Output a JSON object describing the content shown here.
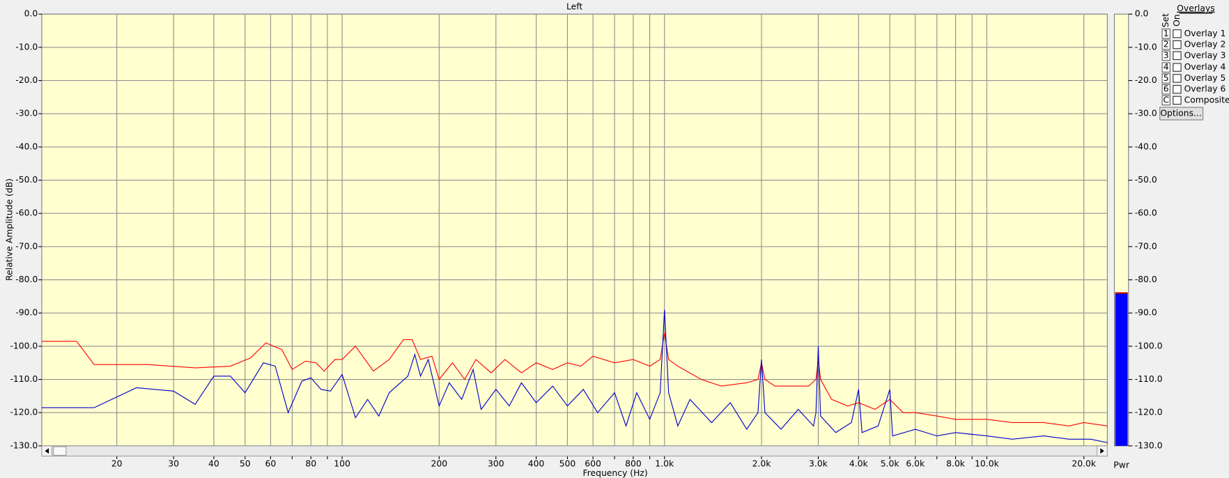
{
  "chart_data": {
    "type": "line",
    "title": "Left",
    "ylabel": "Relative Amplitude (dB)",
    "xlabel": "Frequency (Hz)",
    "xscale": "log",
    "xlim": [
      11.7,
      23650
    ],
    "ylim": [
      -130,
      0
    ],
    "grid": true,
    "xticks": [
      20,
      30,
      40,
      50,
      60,
      80,
      100,
      200,
      300,
      400,
      500,
      600,
      800,
      {
        "value": 1000,
        "label": "1.0k"
      },
      {
        "value": 2000,
        "label": "2.0k"
      },
      {
        "value": 3000,
        "label": "3.0k"
      },
      {
        "value": 4000,
        "label": "4.0k"
      },
      {
        "value": 5000,
        "label": "5.0k"
      },
      {
        "value": 6000,
        "label": "6.0k"
      },
      {
        "value": 8000,
        "label": "8.0k"
      },
      {
        "value": 10000,
        "label": "10.0k"
      },
      {
        "value": 20000,
        "label": "20.0k"
      }
    ],
    "minor_xticks": [
      70,
      90,
      700,
      900,
      7000,
      9000
    ],
    "yticks": [
      {
        "value": 0,
        "label": "0.0"
      },
      {
        "value": -10,
        "label": "-10.0"
      },
      {
        "value": -20,
        "label": "-20.0"
      },
      {
        "value": -30,
        "label": "-30.0"
      },
      {
        "value": -40,
        "label": "-40.0"
      },
      {
        "value": -50,
        "label": "-50.0"
      },
      {
        "value": -60,
        "label": "-60.0"
      },
      {
        "value": -70,
        "label": "-70.0"
      },
      {
        "value": -80,
        "label": "-80.0"
      },
      {
        "value": -90,
        "label": "-90.0"
      },
      {
        "value": -100,
        "label": "-100.0"
      },
      {
        "value": -110,
        "label": "-110.0"
      },
      {
        "value": -120,
        "label": "-120.0"
      },
      {
        "value": -130,
        "label": "-130.0"
      }
    ],
    "series": [
      {
        "color": "#ff0000",
        "x": [
          11.7,
          15,
          17,
          25,
          35,
          45,
          52,
          58,
          65,
          70,
          77,
          83,
          88,
          95,
          100,
          110,
          125,
          140,
          155,
          165,
          175,
          190,
          200,
          220,
          240,
          260,
          290,
          320,
          360,
          400,
          450,
          500,
          550,
          600,
          700,
          800,
          900,
          970,
          1000,
          1030,
          1100,
          1300,
          1500,
          1800,
          1950,
          2000,
          2050,
          2200,
          2500,
          2800,
          2950,
          3000,
          3050,
          3300,
          3700,
          4000,
          4500,
          5000,
          5500,
          6000,
          7000,
          8000,
          9000,
          10000,
          12000,
          15000,
          18000,
          20000,
          23650
        ],
        "values": [
          -98.5,
          -98.5,
          -105.5,
          -105.5,
          -106.5,
          -106,
          -103.5,
          -99,
          -101,
          -107,
          -104.5,
          -105,
          -107.5,
          -104,
          -104,
          -100,
          -107.5,
          -104,
          -98,
          -98,
          -104,
          -103,
          -110,
          -105,
          -110,
          -104,
          -108,
          -104,
          -108,
          -105,
          -107,
          -105,
          -106,
          -103,
          -105,
          -104,
          -106,
          -104,
          -96,
          -104,
          -106,
          -110,
          -112,
          -111,
          -110,
          -105,
          -110,
          -112,
          -112,
          -112,
          -110,
          -104,
          -110,
          -116,
          -118,
          -117,
          -119,
          -116,
          -120,
          -120,
          -121,
          -122,
          -122,
          -122,
          -123,
          -123,
          -124,
          -123,
          -124
        ]
      },
      {
        "color": "#0000cc",
        "x": [
          11.7,
          17,
          23,
          30,
          35,
          40,
          45,
          50,
          57,
          62,
          68,
          75,
          80,
          86,
          92,
          100,
          110,
          120,
          130,
          140,
          160,
          168,
          175,
          185,
          200,
          215,
          235,
          255,
          270,
          300,
          330,
          360,
          400,
          450,
          500,
          560,
          620,
          700,
          760,
          820,
          900,
          970,
          1000,
          1030,
          1100,
          1200,
          1400,
          1600,
          1800,
          1950,
          2000,
          2050,
          2300,
          2600,
          2900,
          2950,
          3000,
          3050,
          3400,
          3800,
          4000,
          4100,
          4600,
          5000,
          5100,
          6000,
          7000,
          8000,
          10000,
          12000,
          15000,
          18000,
          21000,
          23650
        ],
        "values": [
          -118.5,
          -118.5,
          -112.5,
          -113.5,
          -117.5,
          -109,
          -109,
          -114,
          -105,
          -106,
          -120,
          -110.5,
          -109.5,
          -113,
          -113.5,
          -108.5,
          -121.5,
          -116,
          -121,
          -114,
          -109,
          -102.5,
          -109,
          -104,
          -118,
          -111,
          -116,
          -107,
          -119,
          -113,
          -118,
          -111,
          -117,
          -112,
          -118,
          -113,
          -120,
          -114,
          -124,
          -114,
          -122,
          -114,
          -89,
          -114,
          -124,
          -116,
          -123,
          -117,
          -125,
          -120,
          -104,
          -120,
          -125,
          -119,
          -124,
          -120,
          -100,
          -121,
          -126,
          -123,
          -113,
          -126,
          -124,
          -113,
          -127,
          -125,
          -127,
          -126,
          -127,
          -128,
          -127,
          -128,
          -128,
          -129
        ]
      }
    ],
    "meter": {
      "label": "Pwr",
      "value": -84,
      "color": "#0000ff"
    }
  },
  "overlays": {
    "title": "Overlays",
    "set_label": "Set",
    "on_label": "On",
    "button": "Options...",
    "items": [
      {
        "set": "1",
        "name": "Overlay 1",
        "color": "#1a9a1a"
      },
      {
        "set": "2",
        "name": "Overlay 2",
        "color": "#1ab0c0"
      },
      {
        "set": "3",
        "name": "Overlay 3",
        "color": "#800080"
      },
      {
        "set": "4",
        "name": "Overlay 4",
        "color": "#e020e0"
      },
      {
        "set": "5",
        "name": "Overlay 5",
        "color": "#a0522d"
      },
      {
        "set": "6",
        "name": "Overlay 6",
        "color": "#f08050"
      },
      {
        "set": "C",
        "name": "Composite",
        "color": "#000000"
      }
    ]
  }
}
